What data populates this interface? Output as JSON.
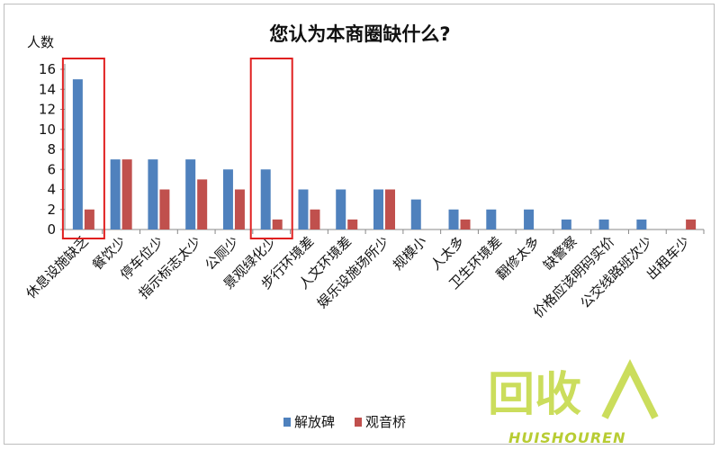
{
  "chart_data": {
    "type": "bar",
    "title": "您认为本商圈缺什么?",
    "ylabel": "人数",
    "xlabel": "",
    "ylim": [
      0,
      16
    ],
    "yticks": [
      0,
      2,
      4,
      6,
      8,
      10,
      12,
      14,
      16
    ],
    "grid": false,
    "legend_position": "bottom",
    "categories": [
      "休息设施缺乏",
      "餐饮少",
      "停车位少",
      "指示标志太少",
      "公厕少",
      "景观绿化少",
      "步行环境差",
      "人文环境差",
      "娱乐设施场所少",
      "规模小",
      "人太多",
      "卫生环境差",
      "翻修太多",
      "缺警察",
      "价格应该明码实价",
      "公交线路班次少",
      "出租车少"
    ],
    "series": [
      {
        "name": "解放碑",
        "color": "#4f81bd",
        "values": [
          15,
          7,
          7,
          7,
          6,
          6,
          4,
          4,
          4,
          3,
          2,
          2,
          2,
          1,
          1,
          1,
          0
        ]
      },
      {
        "name": "观音桥",
        "color": "#c0504d",
        "values": [
          2,
          7,
          4,
          5,
          4,
          1,
          2,
          1,
          4,
          0,
          1,
          0,
          0,
          0,
          0,
          0,
          1
        ]
      }
    ],
    "highlighted_categories": [
      "休息设施缺乏",
      "景观绿化少"
    ],
    "highlight_color": "#e02020"
  },
  "watermark": {
    "main": "回收",
    "sub": "HUISHOUREN"
  }
}
